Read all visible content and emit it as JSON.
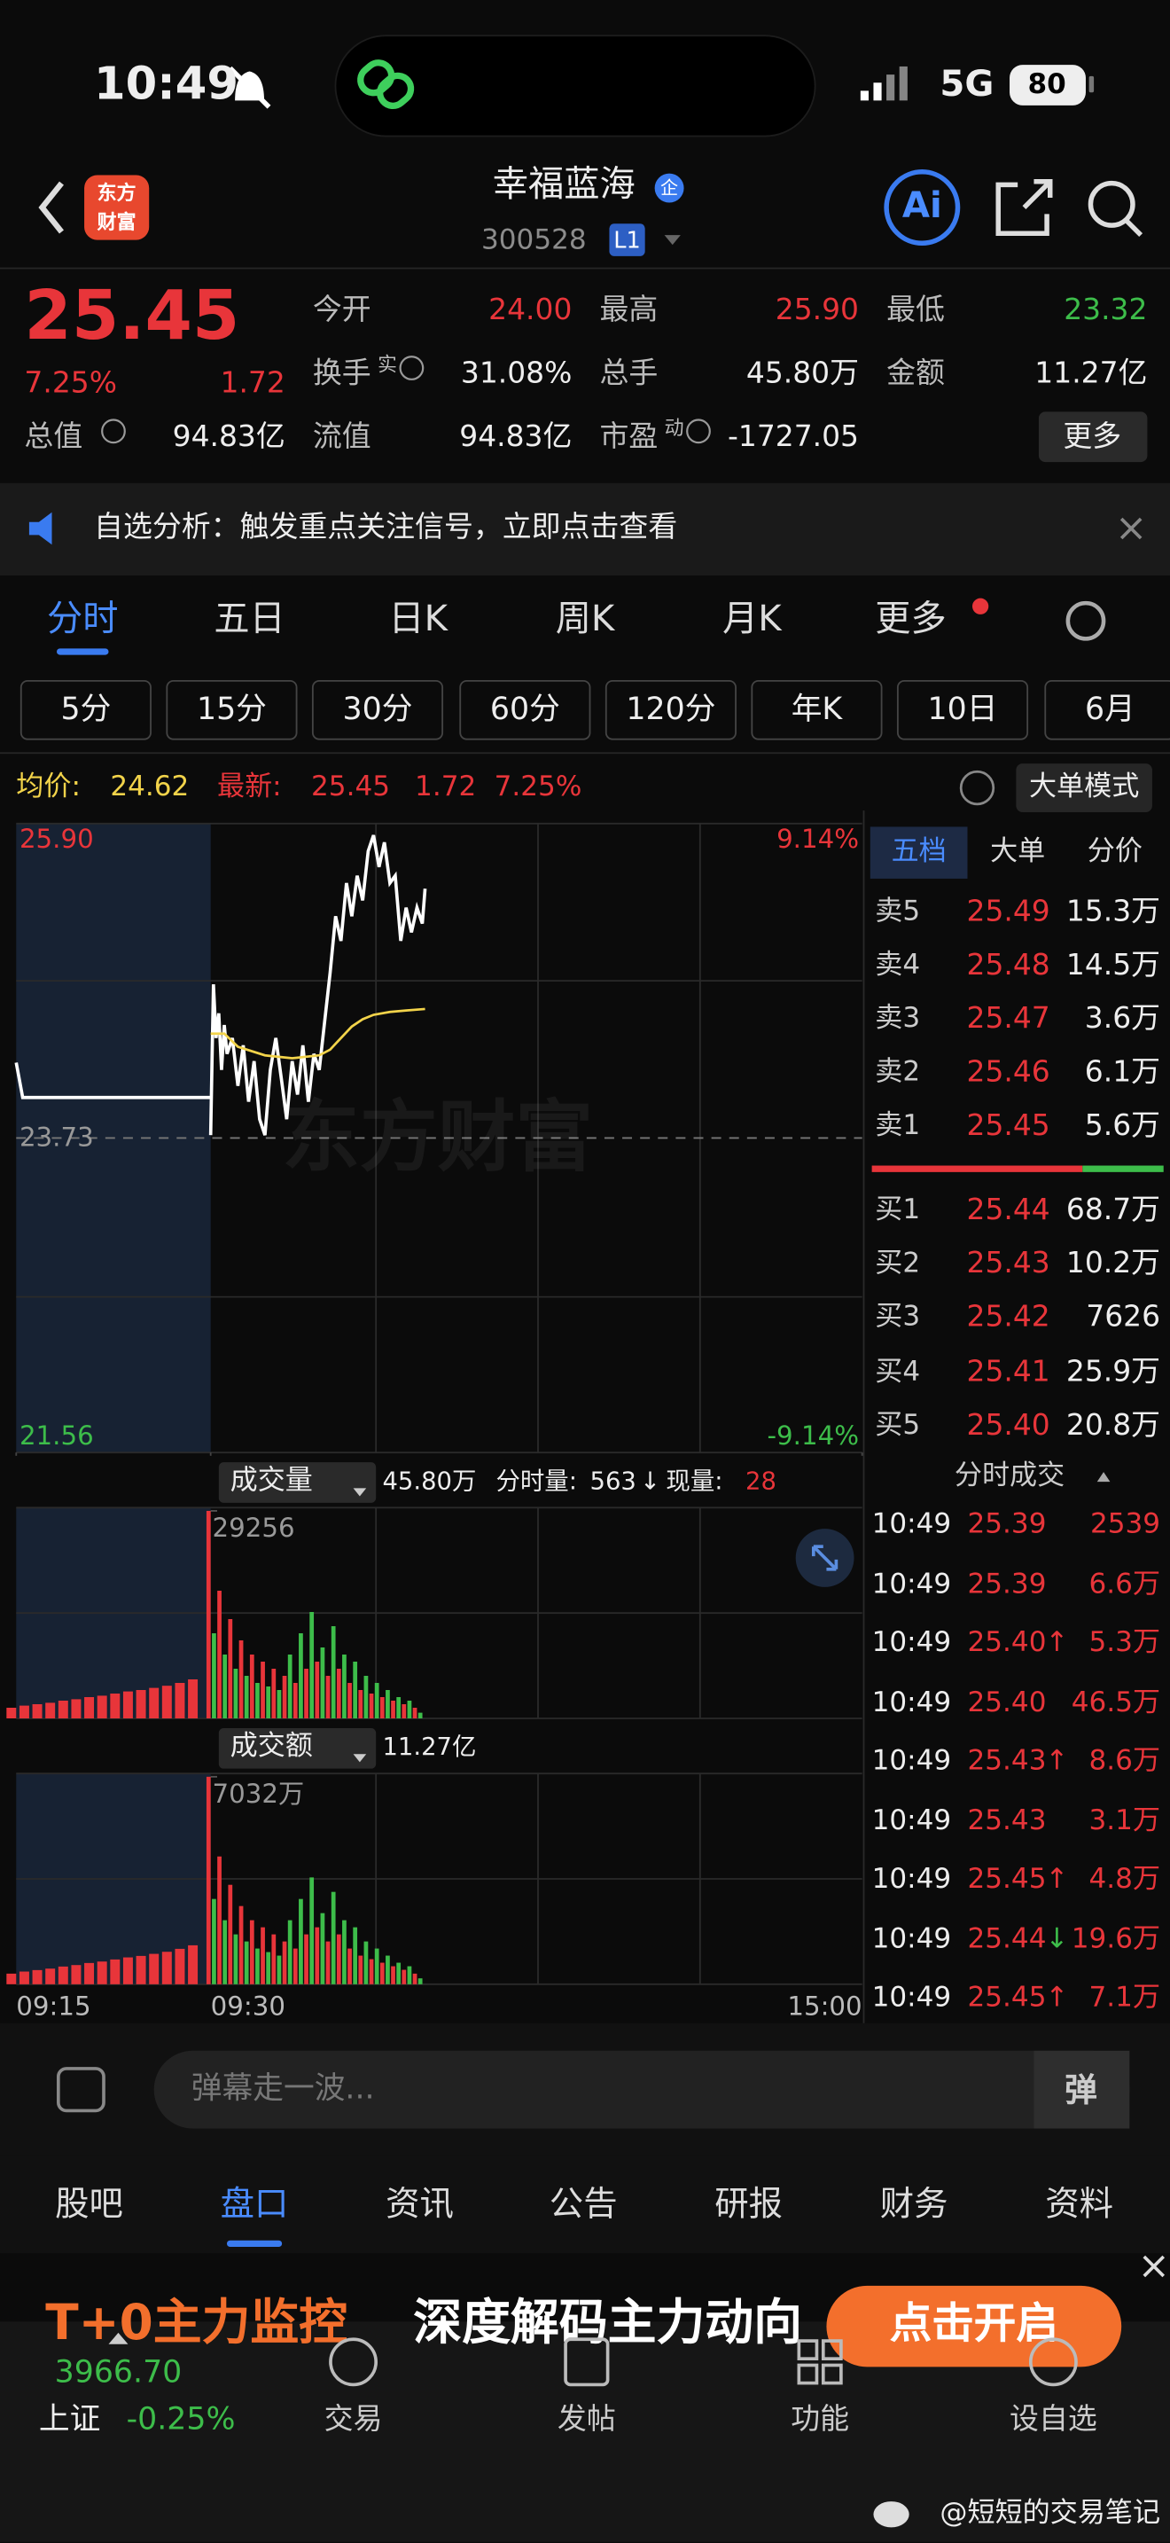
{
  "status": {
    "time": "10:49",
    "network": "5G",
    "battery": "80"
  },
  "header": {
    "logo": [
      "东方",
      "财富"
    ],
    "name": "幸福蓝海",
    "badge": "企",
    "code": "300528",
    "level": "L1",
    "ai": "Ai"
  },
  "quote": {
    "price": "25.45",
    "pct": "7.25%",
    "change": "1.72",
    "more": "更多",
    "fields": [
      {
        "label": "今开",
        "value": "24.00",
        "color": "#e8353a"
      },
      {
        "label": "最高",
        "value": "25.90",
        "color": "#e8353a"
      },
      {
        "label": "最低",
        "value": "23.32",
        "color": "#3dbd4a"
      },
      {
        "label": "换手",
        "sup": "实",
        "value": "31.08%"
      },
      {
        "label": "总手",
        "value": "45.80万"
      },
      {
        "label": "金额",
        "value": "11.27亿"
      },
      {
        "label": "总值",
        "value": "94.83亿"
      },
      {
        "label": "流值",
        "value": "94.83亿"
      },
      {
        "label": "市盈",
        "sup": "动",
        "value": "-1727.05"
      }
    ]
  },
  "notice": {
    "text": "自选分析：触发重点关注信号，立即点击查看"
  },
  "tabs": [
    "分时",
    "五日",
    "日K",
    "周K",
    "月K",
    "更多"
  ],
  "periods": [
    "5分",
    "15分",
    "30分",
    "60分",
    "120分",
    "年K",
    "10日",
    "6月"
  ],
  "summary": {
    "avg_label": "均价:",
    "avg": "24.62",
    "last_label": "最新:",
    "last": "25.45",
    "change": "1.72",
    "pct": "7.25%",
    "mode": "大单模式"
  },
  "intraday": {
    "type": "line",
    "ylim": [
      21.56,
      25.9
    ],
    "yticks": [
      {
        "value": 25.9,
        "label": "25.90"
      },
      23.73,
      {
        "value": 21.56,
        "label": "21.56"
      }
    ],
    "pct_labels": [
      "9.14%",
      "-9.14%"
    ],
    "watermark": "东方财富",
    "xlim": [
      -15,
      240
    ],
    "xticks": [
      {
        "value": -15,
        "label": "09:15"
      },
      {
        "value": 0,
        "label": "09:30"
      },
      {
        "value": 240,
        "label": "15:00"
      }
    ],
    "series": [
      {
        "color": "#ffffff",
        "x": [
          -15,
          -14.5,
          -1,
          0
        ],
        "values": [
          24.25,
          24.01,
          24.01,
          24.01
        ]
      },
      {
        "color": "#ffffff",
        "x": [
          0,
          1,
          2,
          3,
          4,
          5,
          6,
          8,
          10,
          12,
          14,
          16,
          18,
          20,
          22,
          24,
          26,
          28,
          30,
          32,
          34,
          36,
          38,
          40,
          42,
          44,
          46,
          48,
          50,
          52,
          54,
          56,
          58,
          60,
          62,
          64,
          66,
          68,
          70,
          72,
          74,
          76,
          78,
          79
        ],
        "values": [
          23.75,
          24.79,
          24.42,
          24.59,
          24.2,
          24.51,
          24.31,
          24.42,
          24.09,
          24.37,
          23.98,
          24.26,
          23.86,
          23.75,
          24.2,
          24.42,
          24.14,
          23.86,
          24.26,
          24.03,
          24.37,
          23.98,
          24.31,
          24.2,
          24.54,
          24.87,
          25.26,
          25.09,
          25.49,
          25.26,
          25.54,
          25.37,
          25.71,
          25.82,
          25.6,
          25.77,
          25.49,
          25.54,
          25.09,
          25.32,
          25.15,
          25.32,
          25.21,
          25.45
        ]
      },
      {
        "color": "#f2d34a",
        "x": [
          0,
          5,
          10,
          20,
          30,
          40,
          44,
          48,
          52,
          56,
          60,
          66,
          72,
          79
        ],
        "values": [
          24.45,
          24.45,
          24.36,
          24.3,
          24.28,
          24.3,
          24.34,
          24.42,
          24.5,
          24.55,
          24.58,
          24.6,
          24.61,
          24.62
        ]
      }
    ]
  },
  "volume": {
    "label": "成交量",
    "total": "45.80万",
    "minute_label": "分时量:",
    "minute": "563",
    "arrow": "↓",
    "now_label": "现量:",
    "now": "28",
    "ylim": [
      0,
      29256
    ],
    "yticks": [
      29256
    ],
    "series": [
      {
        "color": "#e8353a",
        "x": [
          -15,
          -14,
          -13,
          -12,
          -11,
          -10,
          -9,
          -8,
          -7,
          -6,
          -5,
          -4,
          -3,
          -2,
          -1,
          0,
          4,
          8,
          12,
          16,
          20,
          24,
          28,
          32,
          36,
          40,
          44,
          48,
          52,
          56,
          60,
          64,
          68,
          72,
          76
        ],
        "values": [
          1500,
          1800,
          2000,
          2200,
          2500,
          2700,
          3000,
          3200,
          3500,
          3800,
          4000,
          4300,
          4600,
          5000,
          5500,
          29256,
          18000,
          14000,
          11000,
          9000,
          8000,
          7000,
          6000,
          5000,
          7000,
          8000,
          6000,
          7000,
          5000,
          4000,
          3500,
          3000,
          2500,
          2000,
          1500
        ]
      },
      {
        "color": "#3dbd4a",
        "x": [
          2,
          6,
          10,
          14,
          18,
          22,
          26,
          30,
          34,
          38,
          42,
          46,
          50,
          54,
          58,
          62,
          66,
          70,
          74,
          78
        ],
        "values": [
          12000,
          9000,
          7000,
          6000,
          5000,
          4500,
          4000,
          9000,
          12000,
          15000,
          10000,
          13000,
          9000,
          8000,
          6000,
          5000,
          4000,
          3000,
          2500,
          800
        ]
      }
    ]
  },
  "amount": {
    "label": "成交额",
    "total": "11.27亿",
    "ylim": [
      0,
      7032
    ],
    "yticks": [
      {
        "value": 7032,
        "label": "7032万"
      }
    ],
    "series": [
      {
        "color": "#e8353a",
        "x": [
          -15,
          -14,
          -13,
          -12,
          -11,
          -10,
          -9,
          -8,
          -7,
          -6,
          -5,
          -4,
          -3,
          -2,
          -1,
          0,
          4,
          8,
          12,
          16,
          20,
          24,
          28,
          32,
          36,
          40,
          44,
          48,
          52,
          56,
          60,
          64,
          68,
          72,
          76
        ],
        "values": [
          360,
          430,
          480,
          530,
          600,
          650,
          720,
          770,
          840,
          910,
          960,
          1030,
          1100,
          1200,
          1320,
          7032,
          4330,
          3370,
          2650,
          2170,
          1930,
          1690,
          1450,
          1210,
          1690,
          1930,
          1450,
          1690,
          1210,
          970,
          850,
          730,
          610,
          490,
          360
        ]
      },
      {
        "color": "#3dbd4a",
        "x": [
          2,
          6,
          10,
          14,
          18,
          22,
          26,
          30,
          34,
          38,
          42,
          46,
          50,
          54,
          58,
          62,
          66,
          70,
          74,
          78
        ],
        "values": [
          2890,
          2170,
          1690,
          1450,
          1210,
          1090,
          970,
          2170,
          2890,
          3620,
          2410,
          3130,
          2170,
          1930,
          1450,
          1210,
          970,
          730,
          610,
          200
        ]
      }
    ]
  },
  "book": {
    "tabs": [
      "五档",
      "大单",
      "分价"
    ],
    "asks": [
      {
        "label": "卖5",
        "price": "25.49",
        "vol": "15.3万"
      },
      {
        "label": "卖4",
        "price": "25.48",
        "vol": "14.5万"
      },
      {
        "label": "卖3",
        "price": "25.47",
        "vol": "3.6万"
      },
      {
        "label": "卖2",
        "price": "25.46",
        "vol": "6.1万"
      },
      {
        "label": "卖1",
        "price": "25.45",
        "vol": "5.6万"
      }
    ],
    "bids": [
      {
        "label": "买1",
        "price": "25.44",
        "vol": "68.7万"
      },
      {
        "label": "买2",
        "price": "25.43",
        "vol": "10.2万"
      },
      {
        "label": "买3",
        "price": "25.42",
        "vol": "7626"
      },
      {
        "label": "买4",
        "price": "25.41",
        "vol": "25.9万"
      },
      {
        "label": "买5",
        "price": "25.40",
        "vol": "20.8万"
      }
    ]
  },
  "trades": {
    "title": "分时成交",
    "rows": [
      {
        "time": "10:49",
        "price": "25.39",
        "vol": "2539"
      },
      {
        "time": "10:49",
        "price": "25.39",
        "vol": "6.6万"
      },
      {
        "time": "10:49",
        "price": "25.40",
        "arrow": "↑",
        "vol": "5.3万"
      },
      {
        "time": "10:49",
        "price": "25.40",
        "vol": "46.5万"
      },
      {
        "time": "10:49",
        "price": "25.43",
        "arrow": "↑",
        "vol": "8.6万"
      },
      {
        "time": "10:49",
        "price": "25.43",
        "vol": "3.1万"
      },
      {
        "time": "10:49",
        "price": "25.45",
        "arrow": "↑",
        "vol": "4.8万"
      },
      {
        "time": "10:49",
        "price": "25.44",
        "arrow": "↓",
        "vol": "19.6万"
      },
      {
        "time": "10:49",
        "price": "25.45",
        "arrow": "↑",
        "vol": "7.1万"
      }
    ]
  },
  "comment": {
    "placeholder": "弹幕走一波...",
    "button": "弹"
  },
  "bottom_tabs": [
    "股吧",
    "盘口",
    "资讯",
    "公告",
    "研报",
    "财务",
    "资料"
  ],
  "banner": {
    "highlight": "T+0主力监控",
    "text": "深度解码主力动向",
    "button": "点击开启"
  },
  "footer": {
    "index_value": "3966.70",
    "index_name": "上证",
    "index_pct": "-0.25%",
    "items": [
      "交易",
      "发帖",
      "功能",
      "设自选"
    ]
  },
  "watermark": "@短短的交易笔记"
}
